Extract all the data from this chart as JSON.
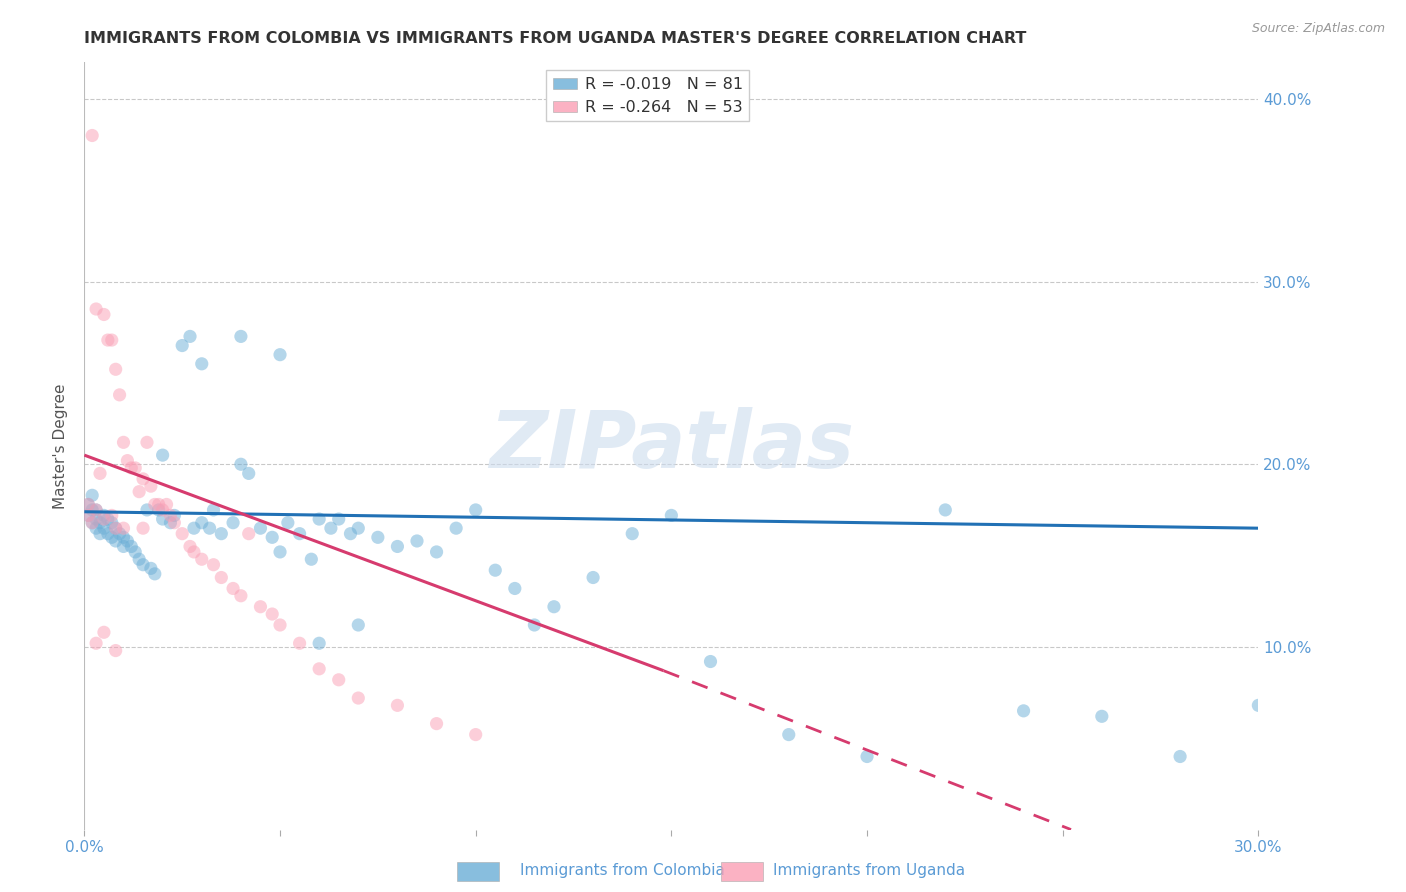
{
  "title": "IMMIGRANTS FROM COLOMBIA VS IMMIGRANTS FROM UGANDA MASTER'S DEGREE CORRELATION CHART",
  "source": "Source: ZipAtlas.com",
  "xlabel_Colombia": "Immigrants from Colombia",
  "xlabel_Uganda": "Immigrants from Uganda",
  "ylabel": "Master's Degree",
  "xlim": [
    0.0,
    0.3
  ],
  "ylim": [
    0.0,
    0.42
  ],
  "colombia_color": "#6baed6",
  "uganda_color": "#fa9fb5",
  "colombia_line_color": "#2171b5",
  "uganda_line_color": "#d63b6e",
  "watermark": "ZIPatlas",
  "legend_R_colombia": "R = -0.019",
  "legend_N_colombia": "N = 81",
  "legend_R_uganda": "R = -0.264",
  "legend_N_uganda": "N = 53",
  "colombia_line": [
    0.0,
    0.174,
    0.3,
    0.165
  ],
  "uganda_line_solid": [
    0.0,
    0.205,
    0.148,
    0.087
  ],
  "uganda_line_dashed": [
    0.148,
    0.087,
    0.3,
    -0.04
  ],
  "colombia_scatter_x": [
    0.001,
    0.001,
    0.002,
    0.002,
    0.002,
    0.003,
    0.003,
    0.003,
    0.004,
    0.004,
    0.005,
    0.005,
    0.006,
    0.006,
    0.007,
    0.007,
    0.008,
    0.008,
    0.009,
    0.01,
    0.01,
    0.011,
    0.012,
    0.013,
    0.014,
    0.015,
    0.016,
    0.017,
    0.018,
    0.019,
    0.02,
    0.022,
    0.023,
    0.025,
    0.027,
    0.028,
    0.03,
    0.032,
    0.033,
    0.035,
    0.038,
    0.04,
    0.042,
    0.045,
    0.048,
    0.05,
    0.052,
    0.055,
    0.058,
    0.06,
    0.063,
    0.065,
    0.068,
    0.07,
    0.075,
    0.08,
    0.085,
    0.09,
    0.095,
    0.1,
    0.105,
    0.11,
    0.115,
    0.12,
    0.13,
    0.14,
    0.15,
    0.16,
    0.18,
    0.2,
    0.22,
    0.24,
    0.26,
    0.28,
    0.3,
    0.02,
    0.03,
    0.04,
    0.05,
    0.06,
    0.07
  ],
  "colombia_scatter_y": [
    0.178,
    0.172,
    0.183,
    0.175,
    0.168,
    0.175,
    0.17,
    0.165,
    0.168,
    0.162,
    0.172,
    0.165,
    0.17,
    0.162,
    0.168,
    0.16,
    0.165,
    0.158,
    0.162,
    0.16,
    0.155,
    0.158,
    0.155,
    0.152,
    0.148,
    0.145,
    0.175,
    0.143,
    0.14,
    0.175,
    0.17,
    0.168,
    0.172,
    0.265,
    0.27,
    0.165,
    0.168,
    0.165,
    0.175,
    0.162,
    0.168,
    0.2,
    0.195,
    0.165,
    0.16,
    0.152,
    0.168,
    0.162,
    0.148,
    0.17,
    0.165,
    0.17,
    0.162,
    0.165,
    0.16,
    0.155,
    0.158,
    0.152,
    0.165,
    0.175,
    0.142,
    0.132,
    0.112,
    0.122,
    0.138,
    0.162,
    0.172,
    0.092,
    0.052,
    0.04,
    0.175,
    0.065,
    0.062,
    0.04,
    0.068,
    0.205,
    0.255,
    0.27,
    0.26,
    0.102,
    0.112
  ],
  "uganda_scatter_x": [
    0.001,
    0.001,
    0.002,
    0.002,
    0.003,
    0.003,
    0.004,
    0.005,
    0.005,
    0.006,
    0.007,
    0.007,
    0.008,
    0.008,
    0.009,
    0.01,
    0.01,
    0.011,
    0.012,
    0.013,
    0.014,
    0.015,
    0.015,
    0.016,
    0.017,
    0.018,
    0.019,
    0.02,
    0.021,
    0.022,
    0.023,
    0.025,
    0.027,
    0.028,
    0.03,
    0.033,
    0.035,
    0.038,
    0.04,
    0.042,
    0.045,
    0.048,
    0.05,
    0.055,
    0.06,
    0.065,
    0.07,
    0.08,
    0.09,
    0.1,
    0.003,
    0.005,
    0.008
  ],
  "uganda_scatter_y": [
    0.178,
    0.172,
    0.38,
    0.168,
    0.285,
    0.175,
    0.195,
    0.282,
    0.17,
    0.268,
    0.268,
    0.172,
    0.252,
    0.165,
    0.238,
    0.212,
    0.165,
    0.202,
    0.198,
    0.198,
    0.185,
    0.192,
    0.165,
    0.212,
    0.188,
    0.178,
    0.178,
    0.175,
    0.178,
    0.172,
    0.168,
    0.162,
    0.155,
    0.152,
    0.148,
    0.145,
    0.138,
    0.132,
    0.128,
    0.162,
    0.122,
    0.118,
    0.112,
    0.102,
    0.088,
    0.082,
    0.072,
    0.068,
    0.058,
    0.052,
    0.102,
    0.108,
    0.098
  ],
  "background_color": "#ffffff",
  "grid_color": "#bbbbbb",
  "title_color": "#333333",
  "axis_color": "#5b9bd5",
  "ylabel_color": "#555555",
  "marker_size": 90,
  "marker_alpha": 0.5,
  "title_fontsize": 11.5,
  "label_fontsize": 11,
  "tick_fontsize": 11
}
